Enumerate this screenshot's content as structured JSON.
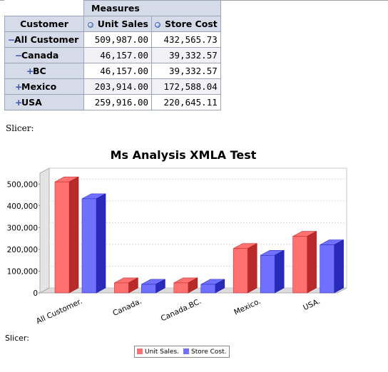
{
  "pivot": {
    "measures_label": "Measures",
    "row_header": "Customer",
    "columns": [
      "Unit Sales",
      "Store Cost"
    ],
    "rows": [
      {
        "symbol": "−",
        "label": "All Customer",
        "values": [
          "509,987.00",
          "432,565.73"
        ]
      },
      {
        "symbol": "−",
        "label": "Canada",
        "values": [
          "46,157.00",
          "39,332.57"
        ]
      },
      {
        "symbol": "+",
        "label": "BC",
        "values": [
          "46,157.00",
          "39,332.57"
        ]
      },
      {
        "symbol": "+",
        "label": "Mexico",
        "values": [
          "203,914.00",
          "172,588.04"
        ]
      },
      {
        "symbol": "+",
        "label": "USA",
        "values": [
          "259,916.00",
          "220,645.11"
        ]
      }
    ]
  },
  "slicer_label": "Slicer:",
  "chart_data": {
    "type": "bar",
    "title": "Ms Analysis XMLA Test",
    "categories": [
      "All Customer.",
      "Canada.",
      "Canada.BC.",
      "Mexico.",
      "USA."
    ],
    "series": [
      {
        "name": "Unit Sales.",
        "values": [
          509987,
          46157,
          46157,
          203914,
          259916
        ],
        "color": "#ff7070"
      },
      {
        "name": "Store Cost.",
        "values": [
          432566,
          39333,
          39333,
          172588,
          220645
        ],
        "color": "#7070ff"
      }
    ],
    "yticks": [
      "0",
      "100,000",
      "200,000",
      "300,000",
      "400,000",
      "500,000"
    ],
    "ylim": [
      0,
      550000
    ],
    "grid": true,
    "legend": "bottom"
  }
}
